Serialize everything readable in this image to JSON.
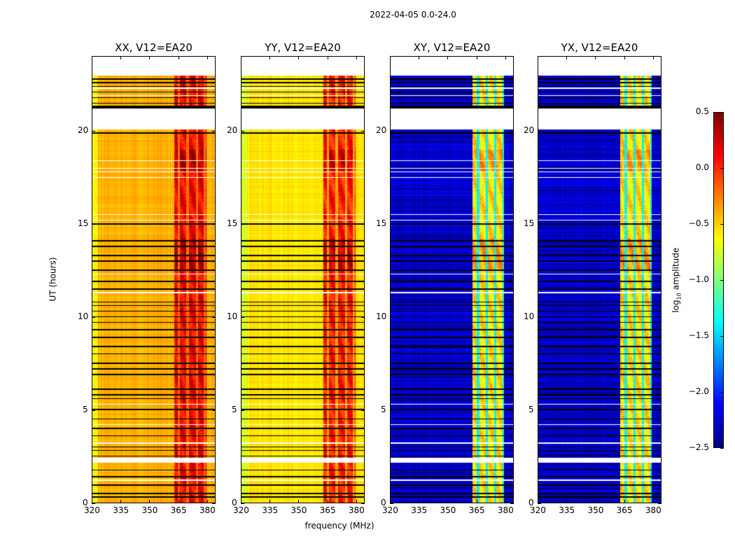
{
  "chart_data": {
    "type": "heatmap",
    "title": "2022-04-05 0.0-24.0",
    "xlabel": "frequency (MHz)",
    "ylabel": "UT (hours)",
    "xlim": [
      320,
      384.4
    ],
    "ylim": [
      0,
      24
    ],
    "xticks": [
      320,
      335,
      350,
      365,
      380
    ],
    "yticks": [
      0,
      5,
      10,
      15,
      20
    ],
    "colormap": "jet",
    "colorbar": {
      "label": "log10 amplitude",
      "label_main": "log",
      "label_sub": "10",
      "label_rest": " amplitude",
      "range": [
        -2.5,
        0.5
      ],
      "ticks": [
        "0.5",
        "0.0",
        "−0.5",
        "−1.0",
        "−1.5",
        "−2.0",
        "−2.5"
      ],
      "tick_values": [
        0.5,
        0.0,
        -0.5,
        -1.0,
        -1.5,
        -2.0,
        -2.5
      ]
    },
    "data_gaps_hours": [
      [
        2.15,
        2.4
      ],
      [
        20.1,
        21.2
      ],
      [
        23.0,
        24.0
      ]
    ],
    "flagged_rows_hours": [
      0.3,
      0.5,
      0.95,
      1.4,
      1.75,
      2.5,
      2.8,
      3.0,
      3.6,
      4.0,
      4.5,
      5.0,
      5.6,
      5.8,
      6.1,
      6.9,
      7.2,
      7.5,
      8.0,
      8.4,
      8.9,
      9.3,
      9.7,
      10.0,
      10.3,
      10.6,
      10.8,
      11.5,
      11.9,
      12.5,
      13.0,
      13.3,
      13.8,
      14.1,
      15.0,
      19.9,
      21.25,
      21.3,
      21.35,
      21.5,
      21.8,
      22.1,
      22.4,
      22.6,
      22.8
    ],
    "blank_rows_hours": [
      1.2,
      3.2,
      4.2,
      5.3,
      11.3,
      12.3,
      15.2,
      15.5,
      17.5,
      17.8,
      18.0,
      18.4,
      21.9,
      22.3
    ],
    "panels": [
      {
        "title": "XX, V12=EA20",
        "baseline_log_amp": -0.4,
        "band_mhz": [
          363,
          380
        ],
        "band_log_amp": 0.15,
        "band_stripes_mhz": [
          365.5,
          370,
          375,
          379
        ],
        "stripe_log_amp": -0.2
      },
      {
        "title": "YY, V12=EA20",
        "baseline_log_amp": -0.55,
        "band_mhz": [
          363,
          380
        ],
        "band_log_amp": 0.05,
        "band_stripes_mhz": [
          365.5,
          370,
          375,
          379
        ],
        "stripe_log_amp": -0.35
      },
      {
        "title": "XY, V12=EA20",
        "baseline_log_amp": -2.3,
        "band_mhz": [
          363,
          379.5
        ],
        "band_log_amp": -0.55,
        "band_stripes_mhz": [
          366,
          370.5,
          375,
          379.5
        ],
        "stripe_log_amp": -1.4
      },
      {
        "title": "YX, V12=EA20",
        "baseline_log_amp": -2.3,
        "band_mhz": [
          363,
          379.5
        ],
        "band_log_amp": -0.55,
        "band_stripes_mhz": [
          366,
          370.5,
          375,
          379.5
        ],
        "stripe_log_amp": -1.4
      }
    ]
  }
}
